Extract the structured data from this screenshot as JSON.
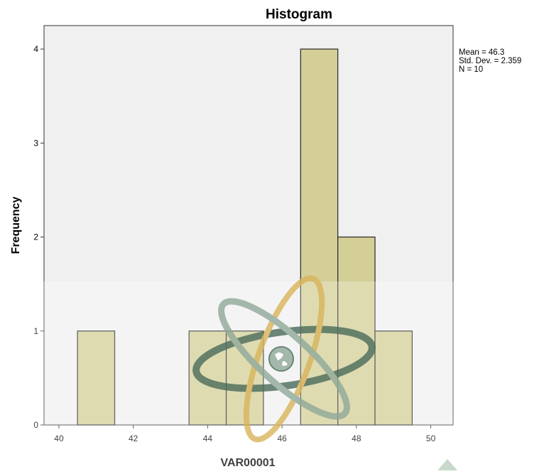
{
  "chart_data": {
    "type": "bar",
    "title": "Histogram",
    "xlabel": "VAR00001",
    "ylabel": "Frequency",
    "xlim": [
      39.6,
      50.6
    ],
    "ylim": [
      0,
      4.25
    ],
    "x_ticks": [
      40,
      42,
      44,
      46,
      48,
      50
    ],
    "y_ticks": [
      0,
      1,
      2,
      3,
      4
    ],
    "bins": [
      {
        "start": 40.5,
        "end": 41.5,
        "count": 1
      },
      {
        "start": 41.5,
        "end": 42.5,
        "count": 0
      },
      {
        "start": 42.5,
        "end": 43.5,
        "count": 0
      },
      {
        "start": 43.5,
        "end": 44.5,
        "count": 1
      },
      {
        "start": 44.5,
        "end": 45.5,
        "count": 1
      },
      {
        "start": 45.5,
        "end": 46.5,
        "count": 0
      },
      {
        "start": 46.5,
        "end": 47.5,
        "count": 4
      },
      {
        "start": 47.5,
        "end": 48.5,
        "count": 2
      },
      {
        "start": 48.5,
        "end": 49.5,
        "count": 1
      }
    ],
    "stats": [
      "Mean = 46.3",
      "Std. Dev. = 2.359",
      "N = 10"
    ],
    "grid": false,
    "legend": "none",
    "colors": {
      "bar_fill": "#d3cf97",
      "bar_stroke": "#333333",
      "plot_bg": "#f0f0f0",
      "frame": "#333333"
    }
  },
  "watermark": {
    "icon": "atom-globe-logo",
    "colors": [
      "#4a6b5a",
      "#d9b45a",
      "#8fa89a"
    ]
  }
}
